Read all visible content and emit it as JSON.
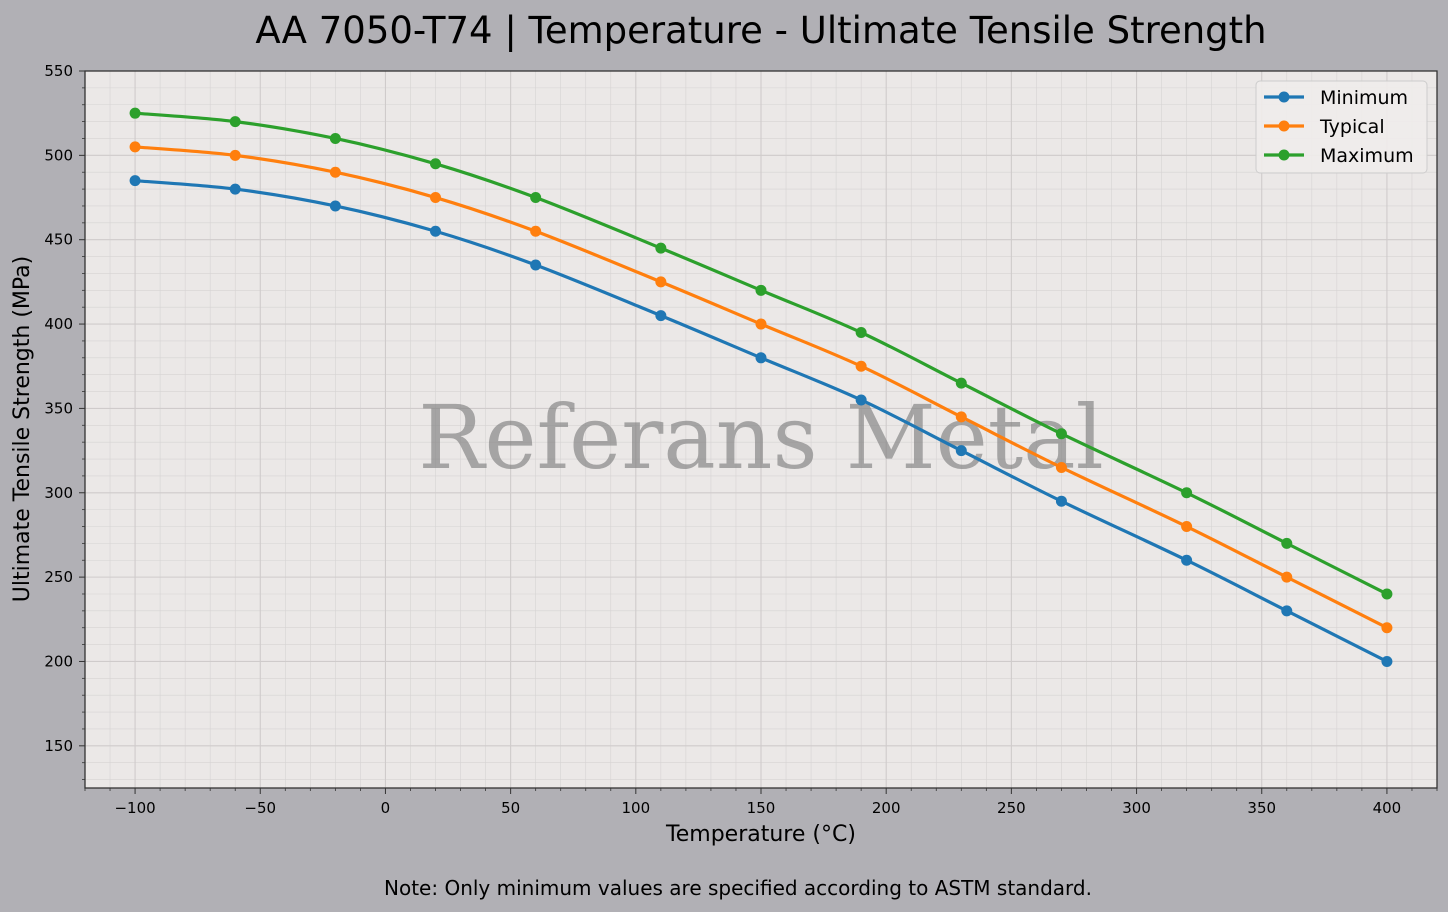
{
  "chart_data": {
    "type": "line",
    "title": "AA 7050-T74 | Temperature - Ultimate Tensile Strength",
    "xlabel": "Temperature (°C)",
    "ylabel": "Ultimate Tensile Strength (MPa)",
    "xlim": [
      -120,
      420
    ],
    "ylim": [
      125,
      550
    ],
    "xticks": [
      -100,
      -50,
      0,
      50,
      100,
      150,
      200,
      250,
      300,
      350,
      400
    ],
    "xtick_labels": [
      "−100",
      "−50",
      "0",
      "50",
      "100",
      "150",
      "200",
      "250",
      "300",
      "350",
      "400"
    ],
    "yticks": [
      150,
      200,
      250,
      300,
      350,
      400,
      450,
      500,
      550
    ],
    "ytick_labels": [
      "150",
      "200",
      "250",
      "300",
      "350",
      "400",
      "450",
      "500",
      "550"
    ],
    "grid": true,
    "legend_position": "top-right",
    "x": [
      -100,
      -60,
      -20,
      20,
      60,
      110,
      150,
      190,
      230,
      270,
      320,
      360,
      400
    ],
    "series": [
      {
        "name": "Minimum",
        "color": "#1f77b4",
        "values": [
          485,
          480,
          470,
          455,
          435,
          405,
          380,
          355,
          325,
          295,
          260,
          230,
          200
        ]
      },
      {
        "name": "Typical",
        "color": "#ff7f0e",
        "values": [
          505,
          500,
          490,
          475,
          455,
          425,
          400,
          375,
          345,
          315,
          280,
          250,
          220
        ]
      },
      {
        "name": "Maximum",
        "color": "#2ca02c",
        "values": [
          525,
          520,
          510,
          495,
          475,
          445,
          420,
          395,
          365,
          335,
          300,
          270,
          240
        ]
      }
    ],
    "watermark": "Referans Metal",
    "note": "Note: Only minimum values are specified according to ASTM standard."
  }
}
